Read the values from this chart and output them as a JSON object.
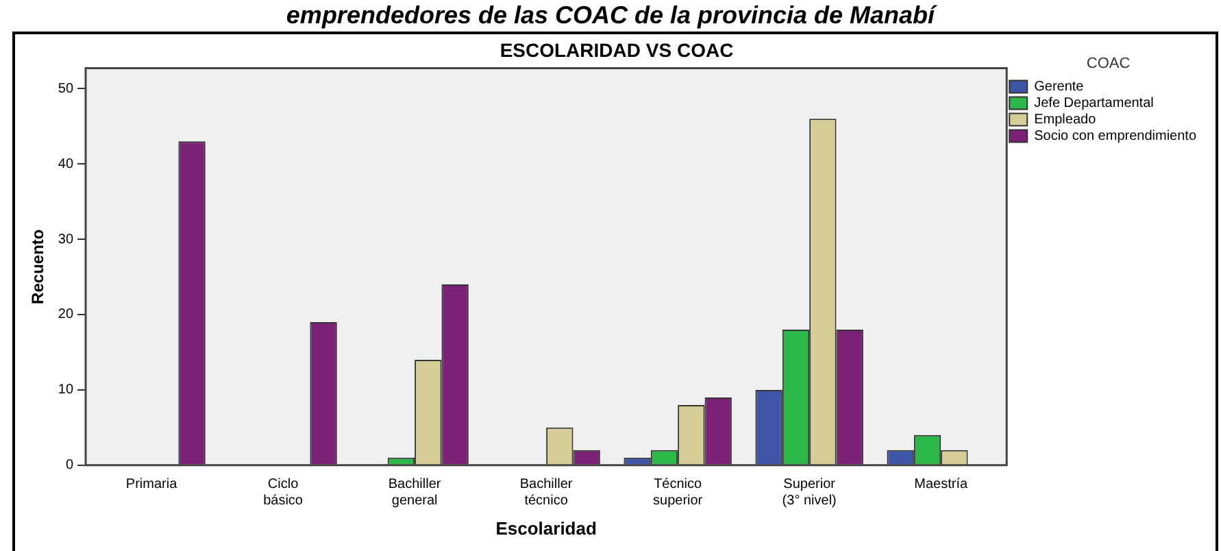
{
  "chart_data": {
    "type": "bar",
    "title": "ESCOLARIDAD VS COAC",
    "annotations": [
      "emprendedores de las COAC de la provincia de Manabí"
    ],
    "xlabel": "Escolaridad",
    "ylabel": "Recuento",
    "legend_title": "COAC",
    "legend": "top right",
    "grid": false,
    "categories": [
      "Primaria",
      "Ciclo básico",
      "Bachiller general",
      "Bachiller técnico",
      "Técnico superior",
      "Superior (3° nivel)",
      "Maestría"
    ],
    "series": [
      {
        "name": "Gerente",
        "color": "#3f56a6",
        "values": [
          null,
          null,
          null,
          null,
          1,
          10,
          2
        ]
      },
      {
        "name": "Jefe Departamental",
        "color": "#2db84a",
        "values": [
          null,
          null,
          1,
          null,
          2,
          18,
          4
        ]
      },
      {
        "name": "Empleado",
        "color": "#d4cd95",
        "values": [
          null,
          null,
          14,
          5,
          8,
          46,
          2
        ]
      },
      {
        "name": "Socio con emprendimiento",
        "color": "#7b2277",
        "values": [
          43,
          19,
          24,
          2,
          9,
          18,
          null
        ]
      }
    ],
    "ylim": [
      0,
      52.7
    ],
    "yticks": [
      0,
      10,
      20,
      30,
      40,
      50
    ]
  }
}
